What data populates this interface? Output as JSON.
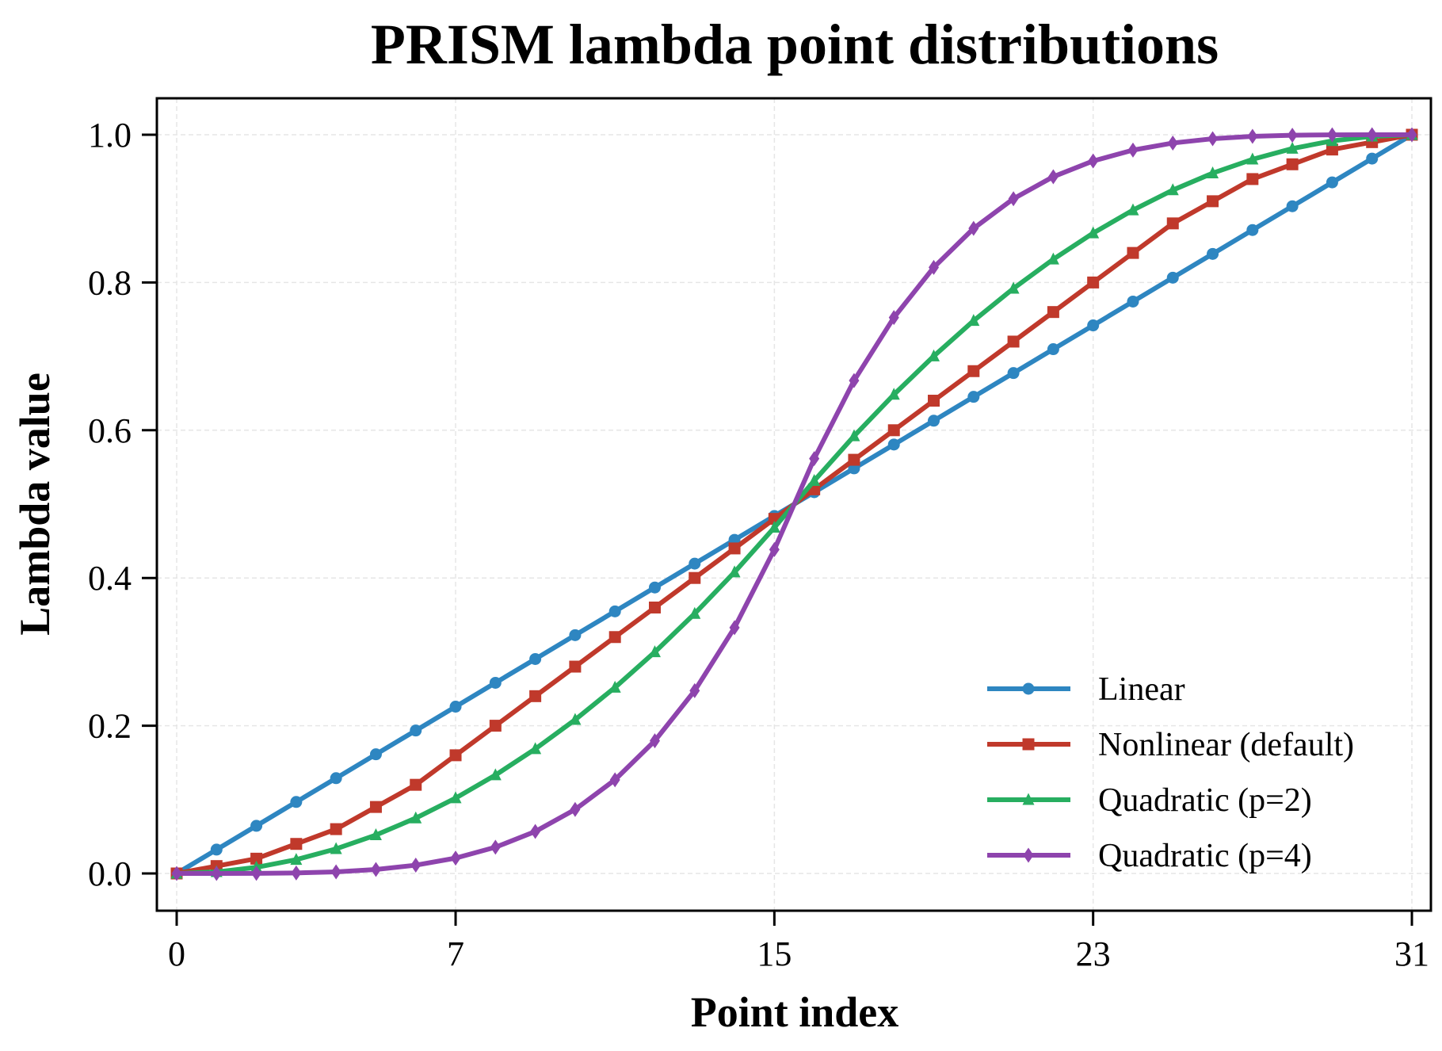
{
  "chart_data": {
    "type": "line",
    "title": "PRISM lambda point distributions",
    "xlabel": "Point index",
    "ylabel": "Lambda value",
    "xlim": [
      -0.5,
      31.5
    ],
    "ylim": [
      -0.05,
      1.05
    ],
    "xticks": [
      0,
      7,
      15,
      23,
      31
    ],
    "xtick_labels": [
      "0",
      "7",
      "15",
      "23",
      "31"
    ],
    "yticks": [
      0,
      0.2,
      0.4,
      0.6,
      0.8,
      1.0
    ],
    "ytick_labels": [
      "0.0",
      "0.2",
      "0.4",
      "0.6",
      "0.8",
      "1.0"
    ],
    "grid": true,
    "legend_placement": "lower-right",
    "x": [
      0,
      1,
      2,
      3,
      4,
      5,
      6,
      7,
      8,
      9,
      10,
      11,
      12,
      13,
      14,
      15,
      16,
      17,
      18,
      19,
      20,
      21,
      22,
      23,
      24,
      25,
      26,
      27,
      28,
      29,
      30,
      31
    ],
    "series": [
      {
        "name": "Linear",
        "color": "#2e86c1",
        "marker": "circle",
        "values": [
          0,
          0.0323,
          0.0645,
          0.0968,
          0.129,
          0.1613,
          0.1935,
          0.2258,
          0.2581,
          0.2903,
          0.3226,
          0.3548,
          0.3871,
          0.4194,
          0.4516,
          0.4839,
          0.5161,
          0.5484,
          0.5806,
          0.6129,
          0.6452,
          0.6774,
          0.7097,
          0.7419,
          0.7742,
          0.8065,
          0.8387,
          0.871,
          0.9032,
          0.9355,
          0.9677,
          1.0
        ]
      },
      {
        "name": "Nonlinear (default)",
        "color": "#c0392b",
        "marker": "square",
        "values": [
          0,
          0.01,
          0.02,
          0.04,
          0.06,
          0.09,
          0.12,
          0.16,
          0.2,
          0.24,
          0.28,
          0.32,
          0.36,
          0.4,
          0.44,
          0.48,
          0.52,
          0.56,
          0.6,
          0.64,
          0.68,
          0.72,
          0.76,
          0.8,
          0.84,
          0.88,
          0.91,
          0.94,
          0.96,
          0.98,
          0.99,
          1.0
        ]
      },
      {
        "name": "Quadratic (p=2)",
        "color": "#27ae60",
        "marker": "triangle",
        "values": [
          0,
          0.0021,
          0.0083,
          0.0187,
          0.0333,
          0.052,
          0.0749,
          0.102,
          0.1332,
          0.1686,
          0.2081,
          0.2518,
          0.2997,
          0.3517,
          0.4079,
          0.4683,
          0.5317,
          0.5921,
          0.6483,
          0.7003,
          0.7482,
          0.7919,
          0.8314,
          0.8668,
          0.898,
          0.9251,
          0.948,
          0.9667,
          0.9813,
          0.9917,
          0.9979,
          1.0
        ]
      },
      {
        "name": "Quadratic (p=4)",
        "color": "#8e44ad",
        "marker": "diamond",
        "values": [
          0,
          0.0,
          0.0001,
          0.0007,
          0.0022,
          0.0054,
          0.0112,
          0.0208,
          0.0355,
          0.0568,
          0.0866,
          0.1268,
          0.1796,
          0.2474,
          0.3328,
          0.4385,
          0.5615,
          0.6672,
          0.7526,
          0.8204,
          0.8732,
          0.9134,
          0.9432,
          0.9645,
          0.9792,
          0.9888,
          0.9946,
          0.9978,
          0.9993,
          0.9999,
          1.0,
          1.0
        ]
      }
    ]
  }
}
